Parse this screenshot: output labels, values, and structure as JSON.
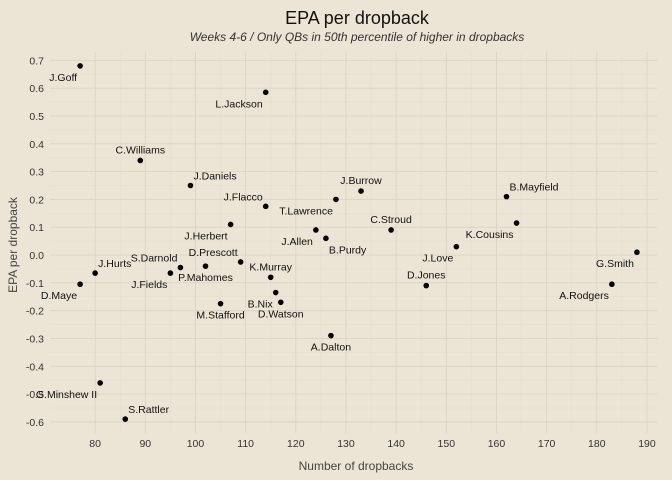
{
  "chart_data": {
    "type": "scatter",
    "title": "EPA per dropback",
    "subtitle": "Weeks 4-6 / Only QBs in 50th percentile of higher in dropbacks",
    "xlabel": "Number of dropbacks",
    "ylabel": "EPA per dropback",
    "xlim": [
      71,
      192
    ],
    "ylim": [
      -0.64,
      0.73
    ],
    "xticks": [
      80,
      90,
      100,
      110,
      120,
      130,
      140,
      150,
      160,
      170,
      180,
      190
    ],
    "yticks": [
      -0.6,
      -0.5,
      -0.4,
      -0.3,
      -0.2,
      -0.1,
      0.0,
      0.1,
      0.2,
      0.3,
      0.4,
      0.5,
      0.6,
      0.7
    ],
    "ytick_labels": [
      "-0.6",
      "-0.5",
      "-0.4",
      "-0.3",
      "-0.2",
      "-0.1",
      "0.0",
      "0.1",
      "0.2",
      "0.3",
      "0.4",
      "0.5",
      "0.6",
      "0.7"
    ],
    "grid": true,
    "points": [
      {
        "label": "J.Goff",
        "x": 77,
        "y": 0.68,
        "pos": "bl"
      },
      {
        "label": "L.Jackson",
        "x": 114,
        "y": 0.585,
        "pos": "bl"
      },
      {
        "label": "C.Williams",
        "x": 89,
        "y": 0.34,
        "pos": "t"
      },
      {
        "label": "J.Daniels",
        "x": 99,
        "y": 0.25,
        "pos": "tr"
      },
      {
        "label": "J.Flacco",
        "x": 114,
        "y": 0.175,
        "pos": "tl"
      },
      {
        "label": "J.Herbert",
        "x": 107,
        "y": 0.11,
        "pos": "bl"
      },
      {
        "label": "J.Burrow",
        "x": 133,
        "y": 0.23,
        "pos": "t"
      },
      {
        "label": "T.Lawrence",
        "x": 128,
        "y": 0.2,
        "pos": "bl"
      },
      {
        "label": "B.Mayfield",
        "x": 162,
        "y": 0.21,
        "pos": "tr"
      },
      {
        "label": "K.Cousins",
        "x": 164,
        "y": 0.115,
        "pos": "bl"
      },
      {
        "label": "C.Stroud",
        "x": 139,
        "y": 0.09,
        "pos": "t"
      },
      {
        "label": "J.Allen",
        "x": 124,
        "y": 0.09,
        "pos": "bl"
      },
      {
        "label": "B.Purdy",
        "x": 126,
        "y": 0.06,
        "pos": "br"
      },
      {
        "label": "J.Love",
        "x": 152,
        "y": 0.03,
        "pos": "bl"
      },
      {
        "label": "D.Jones",
        "x": 146,
        "y": -0.11,
        "pos": "t"
      },
      {
        "label": "G.Smith",
        "x": 188,
        "y": 0.01,
        "pos": "bl"
      },
      {
        "label": "A.Rodgers",
        "x": 183,
        "y": -0.105,
        "pos": "bl"
      },
      {
        "label": "D.Prescott",
        "x": 109,
        "y": -0.025,
        "pos": "tl"
      },
      {
        "label": "S.Darnold",
        "x": 97,
        "y": -0.045,
        "pos": "tl"
      },
      {
        "label": "P.Mahomes",
        "x": 102,
        "y": -0.04,
        "pos": "b"
      },
      {
        "label": "K.Murray",
        "x": 115,
        "y": -0.08,
        "pos": "t"
      },
      {
        "label": "J.Hurts",
        "x": 80,
        "y": -0.065,
        "pos": "tr"
      },
      {
        "label": "J.Fields",
        "x": 95,
        "y": -0.065,
        "pos": "bl"
      },
      {
        "label": "D.Maye",
        "x": 77,
        "y": -0.105,
        "pos": "bl"
      },
      {
        "label": "B.Nix",
        "x": 116,
        "y": -0.135,
        "pos": "bl"
      },
      {
        "label": "D.Watson",
        "x": 117,
        "y": -0.17,
        "pos": "b"
      },
      {
        "label": "M.Stafford",
        "x": 105,
        "y": -0.175,
        "pos": "b"
      },
      {
        "label": "A.Dalton",
        "x": 127,
        "y": -0.29,
        "pos": "b"
      },
      {
        "label": "G.Minshew II",
        "x": 81,
        "y": -0.46,
        "pos": "bl"
      },
      {
        "label": "S.Rattler",
        "x": 86,
        "y": -0.59,
        "pos": "tr"
      }
    ]
  }
}
